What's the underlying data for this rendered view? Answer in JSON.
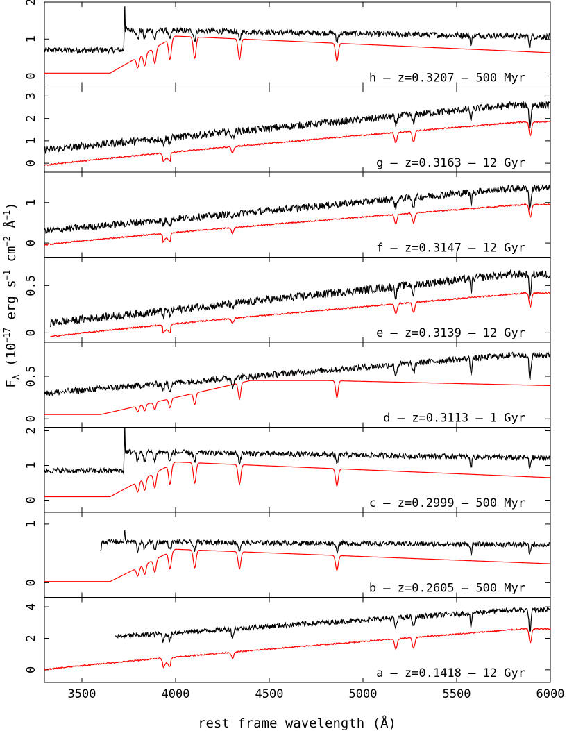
{
  "chart_data": {
    "type": "line",
    "xlabel": "rest frame wavelength (Å)",
    "ylabel": {
      "base": "F",
      "sub": "λ",
      "text1": " (10",
      "sup1": "−17",
      "text2": " erg s",
      "sup2": "−1",
      "text3": " cm",
      "sup3": "−2",
      "text4": " Å",
      "sup4": "−1",
      "text5": ")"
    },
    "xlim": [
      3300,
      6000
    ],
    "xticks": [
      3500,
      4000,
      4500,
      5000,
      5500,
      6000
    ],
    "series_colors": {
      "observed": "#000000",
      "model": "#ff0000"
    },
    "panels": [
      {
        "id": "h",
        "label": "h   –   z=0.3207  –  500 Myr",
        "age": "young",
        "ylim": [
          -0.3,
          2.0
        ],
        "yticks": [
          0,
          1,
          2
        ],
        "start": 3300,
        "break_at": 3727,
        "obs_base": 0.7,
        "obs_slope": 0.55,
        "mod_base": 0.08,
        "mod_offset_max": 1.0
      },
      {
        "id": "g",
        "label": "g   –   z=0.3163  –  12 Gyr",
        "age": "old",
        "ylim": [
          -0.4,
          3.4
        ],
        "yticks": [
          0,
          1,
          2,
          3
        ],
        "start": 3300,
        "obs_base": 0.6,
        "obs_top": 2.6,
        "mod_base": -0.1,
        "mod_top": 1.85
      },
      {
        "id": "f",
        "label": "f   –   z=0.3147  –  12 Gyr",
        "age": "old",
        "ylim": [
          -0.35,
          1.75
        ],
        "yticks": [
          0,
          1
        ],
        "start": 3300,
        "obs_base": 0.3,
        "obs_top": 1.35,
        "mod_base": -0.05,
        "mod_top": 0.95
      },
      {
        "id": "e",
        "label": "e   –   z=0.3139  –  12 Gyr",
        "age": "old",
        "ylim": [
          -0.1,
          0.8
        ],
        "yticks": [
          0,
          0.5
        ],
        "start": 3330,
        "obs_base": 0.1,
        "obs_top": 0.62,
        "mod_base": -0.05,
        "mod_top": 0.42
      },
      {
        "id": "d",
        "label": "d   –   z=0.3113  –  1 Gyr",
        "age": "mid",
        "ylim": [
          -0.1,
          0.9
        ],
        "yticks": [
          0,
          0.5
        ],
        "start": 3300,
        "obs_base": 0.3,
        "obs_top": 0.75,
        "mod_base": 0.05,
        "mod_top": 0.45
      },
      {
        "id": "c",
        "label": "c   –   z=0.2999  –  500 Myr",
        "age": "young",
        "ylim": [
          -0.35,
          2.1
        ],
        "yticks": [
          0,
          1,
          2
        ],
        "start": 3300,
        "break_at": 3727,
        "obs_base": 0.85,
        "obs_slope": 0.55,
        "mod_base": 0.1,
        "mod_offset_max": 1.0
      },
      {
        "id": "b",
        "label": "b   –   z=0.2605  –  500 Myr",
        "age": "young",
        "ylim": [
          -0.25,
          1.2
        ],
        "yticks": [
          0,
          1
        ],
        "start": 3300,
        "break_at": 3605,
        "obs_base": 0.55,
        "obs_slope": 0.15,
        "mod_base": 0.02,
        "mod_offset_max": 0.55,
        "obs_starts_at": 3600
      },
      {
        "id": "a",
        "label": "a   –   z=0.1418  –  12 Gyr",
        "age": "old",
        "ylim": [
          -0.8,
          4.6
        ],
        "yticks": [
          0,
          2,
          4
        ],
        "start": 3300,
        "obs_base": 1.8,
        "obs_top": 3.8,
        "mod_base": 0.0,
        "mod_top": 2.6,
        "obs_starts_at": 3680
      }
    ]
  }
}
